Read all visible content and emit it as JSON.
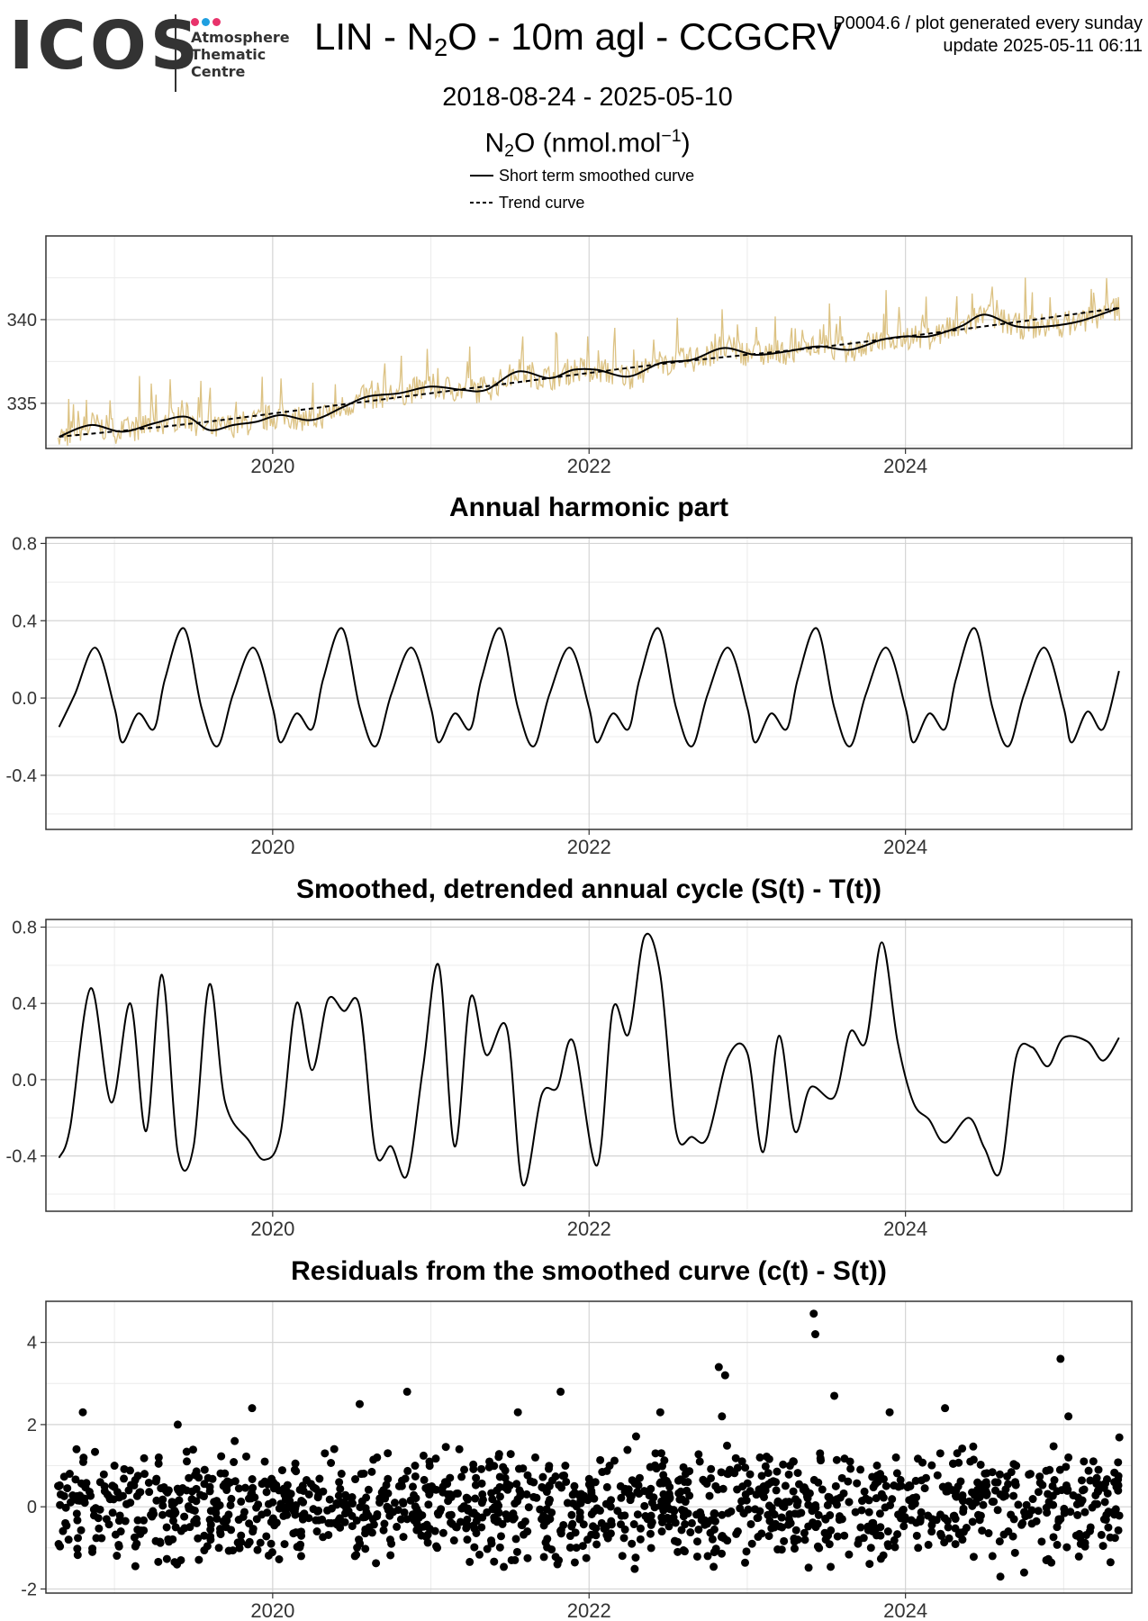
{
  "logo": {
    "wordmark": "ICOS",
    "line1": "Atmosphere",
    "line2": "Thematic",
    "line3": "Centre",
    "dot_colors": [
      "#e8336b",
      "#1f9fe0",
      "#e8336b"
    ]
  },
  "header": {
    "title_pre": "LIN - N",
    "title_sub": "2",
    "title_post": "O - 10m agl - CCGCRV",
    "meta_line1": "P0004.6 / plot generated every sunday",
    "meta_line2": "update  2025-05-11 06:11",
    "date_range": "2018-08-24 - 2025-05-10",
    "ylabel_pre": "N",
    "ylabel_sub": "2",
    "ylabel_mid": "O (nmol.mol",
    "ylabel_sup": "−1",
    "ylabel_post": ")"
  },
  "legend": {
    "solid_label": "Short term smoothed curve",
    "dashed_label": "Trend curve"
  },
  "colors": {
    "raw": "#dcc283",
    "curve": "#000000",
    "grid_major": "#d4d4d4",
    "grid_minor": "#ececec",
    "panel_border": "#333333"
  },
  "chart_data": [
    {
      "type": "line",
      "title": "",
      "x_range": [
        "2018-08-24",
        "2025-05-10"
      ],
      "x_ticks": [
        "2020",
        "2022",
        "2024"
      ],
      "ylim": [
        332.3,
        345.0
      ],
      "y_ticks": [
        335,
        340
      ],
      "grid": true,
      "series": [
        {
          "name": "Short term smoothed curve",
          "style": "solid",
          "x": [
            2018.65,
            2018.85,
            2019.05,
            2019.25,
            2019.45,
            2019.6,
            2019.75,
            2019.9,
            2020.05,
            2020.25,
            2020.45,
            2020.6,
            2020.8,
            2021.0,
            2021.2,
            2021.35,
            2021.55,
            2021.75,
            2021.9,
            2022.05,
            2022.25,
            2022.45,
            2022.65,
            2022.85,
            2023.05,
            2023.25,
            2023.45,
            2023.65,
            2023.85,
            2024.0,
            2024.15,
            2024.35,
            2024.5,
            2024.7,
            2024.9,
            2025.1,
            2025.35
          ],
          "y": [
            333.0,
            333.7,
            333.3,
            333.8,
            334.2,
            333.4,
            333.7,
            333.9,
            334.3,
            334.0,
            334.8,
            335.4,
            335.6,
            336.0,
            335.8,
            335.8,
            336.9,
            336.5,
            337.0,
            337.0,
            336.6,
            337.4,
            337.6,
            338.3,
            337.9,
            338.1,
            338.4,
            338.2,
            338.8,
            339.0,
            339.0,
            339.6,
            340.3,
            339.6,
            339.6,
            339.9,
            340.7
          ]
        },
        {
          "name": "Trend curve",
          "style": "dashed",
          "x": [
            2018.65,
            2019.5,
            2020.5,
            2021.5,
            2022.5,
            2023.5,
            2024.5,
            2025.35
          ],
          "y": [
            333.0,
            333.8,
            335.0,
            336.2,
            337.4,
            338.4,
            339.6,
            340.7
          ]
        }
      ]
    },
    {
      "type": "line",
      "title": "Annual harmonic part",
      "x_range": [
        "2018-08-24",
        "2025-05-10"
      ],
      "x_ticks": [
        "2020",
        "2022",
        "2024"
      ],
      "ylim": [
        -0.68,
        0.83
      ],
      "y_ticks": [
        -0.4,
        0.0,
        0.4,
        0.8
      ],
      "grid": true,
      "series": [
        {
          "name": "",
          "style": "solid",
          "x": [
            2018.65,
            2018.75,
            2018.88,
            2019.0,
            2019.05,
            2019.15,
            2019.25,
            2019.32,
            2019.44,
            2019.55,
            2019.65,
            2019.75,
            2019.88,
            2020.0,
            2020.05,
            2020.15,
            2020.25,
            2020.32,
            2020.44,
            2020.55,
            2020.65,
            2020.75,
            2020.88,
            2021.0,
            2021.05,
            2021.15,
            2021.25,
            2021.32,
            2021.44,
            2021.55,
            2021.65,
            2021.75,
            2021.88,
            2022.0,
            2022.05,
            2022.15,
            2022.25,
            2022.32,
            2022.44,
            2022.55,
            2022.65,
            2022.75,
            2022.88,
            2023.0,
            2023.05,
            2023.15,
            2023.25,
            2023.32,
            2023.44,
            2023.55,
            2023.65,
            2023.75,
            2023.88,
            2024.0,
            2024.05,
            2024.15,
            2024.25,
            2024.32,
            2024.44,
            2024.55,
            2024.65,
            2024.75,
            2024.88,
            2025.0,
            2025.05,
            2025.15,
            2025.25,
            2025.35
          ],
          "y": [
            -0.15,
            0.02,
            0.26,
            -0.05,
            -0.23,
            -0.08,
            -0.16,
            0.1,
            0.36,
            -0.05,
            -0.25,
            0.02,
            0.26,
            -0.05,
            -0.23,
            -0.08,
            -0.16,
            0.1,
            0.36,
            -0.05,
            -0.25,
            0.02,
            0.26,
            -0.05,
            -0.23,
            -0.08,
            -0.16,
            0.1,
            0.36,
            -0.05,
            -0.25,
            0.02,
            0.26,
            -0.05,
            -0.23,
            -0.08,
            -0.16,
            0.1,
            0.36,
            -0.05,
            -0.25,
            0.02,
            0.26,
            -0.05,
            -0.23,
            -0.08,
            -0.16,
            0.1,
            0.36,
            -0.05,
            -0.25,
            0.02,
            0.26,
            -0.05,
            -0.23,
            -0.08,
            -0.16,
            0.1,
            0.36,
            -0.05,
            -0.25,
            0.02,
            0.26,
            -0.05,
            -0.23,
            -0.07,
            -0.16,
            0.14
          ]
        }
      ]
    },
    {
      "type": "line",
      "title": "Smoothed, detrended annual cycle (S(t) - T(t))",
      "x_range": [
        "2018-08-24",
        "2025-05-10"
      ],
      "x_ticks": [
        "2020",
        "2022",
        "2024"
      ],
      "ylim": [
        -0.69,
        0.84
      ],
      "y_ticks": [
        -0.4,
        0.0,
        0.4,
        0.8
      ],
      "grid": true,
      "series": [
        {
          "name": "",
          "style": "solid",
          "x": [
            2018.65,
            2018.72,
            2018.85,
            2018.98,
            2019.1,
            2019.2,
            2019.3,
            2019.4,
            2019.5,
            2019.6,
            2019.7,
            2019.85,
            2019.95,
            2020.05,
            2020.15,
            2020.25,
            2020.35,
            2020.45,
            2020.55,
            2020.65,
            2020.75,
            2020.85,
            2020.95,
            2021.05,
            2021.15,
            2021.25,
            2021.35,
            2021.48,
            2021.58,
            2021.7,
            2021.8,
            2021.9,
            2022.05,
            2022.15,
            2022.25,
            2022.35,
            2022.45,
            2022.55,
            2022.65,
            2022.75,
            2022.88,
            2023.0,
            2023.1,
            2023.2,
            2023.3,
            2023.4,
            2023.55,
            2023.65,
            2023.75,
            2023.85,
            2023.95,
            2024.05,
            2024.15,
            2024.25,
            2024.4,
            2024.5,
            2024.6,
            2024.7,
            2024.8,
            2024.9,
            2025.0,
            2025.15,
            2025.25,
            2025.35
          ],
          "y": [
            -0.41,
            -0.25,
            0.48,
            -0.12,
            0.4,
            -0.27,
            0.55,
            -0.38,
            -0.35,
            0.5,
            -0.12,
            -0.32,
            -0.42,
            -0.28,
            0.4,
            0.05,
            0.42,
            0.36,
            0.38,
            -0.38,
            -0.35,
            -0.5,
            0.06,
            0.6,
            -0.35,
            0.43,
            0.13,
            0.27,
            -0.55,
            -0.08,
            -0.04,
            0.2,
            -0.45,
            0.37,
            0.24,
            0.75,
            0.55,
            -0.27,
            -0.3,
            -0.3,
            0.12,
            0.14,
            -0.38,
            0.23,
            -0.27,
            -0.04,
            -0.09,
            0.25,
            0.2,
            0.72,
            0.2,
            -0.12,
            -0.21,
            -0.33,
            -0.2,
            -0.36,
            -0.48,
            0.12,
            0.17,
            0.07,
            0.22,
            0.2,
            0.1,
            0.22
          ]
        }
      ]
    },
    {
      "type": "scatter",
      "title": "Residuals from the smoothed curve (c(t) - S(t))",
      "x_range": [
        "2018-08-24",
        "2025-05-10"
      ],
      "x_ticks": [
        "2020",
        "2022",
        "2024"
      ],
      "ylim": [
        -2.1,
        5.0
      ],
      "y_ticks": [
        -2,
        0,
        2,
        4
      ],
      "grid": true,
      "series": [
        {
          "name": "",
          "style": "points",
          "x": [
            2018.66,
            2018.71,
            2018.76,
            2018.81,
            2018.86,
            2018.91,
            2018.95,
            2019.0,
            2019.04,
            2019.09,
            2019.14,
            2019.19,
            2019.23,
            2019.28,
            2019.33,
            2019.38,
            2019.42,
            2019.47,
            2019.52,
            2019.57,
            2019.61,
            2019.66,
            2019.71,
            2019.76,
            2019.8,
            2019.85,
            2019.9,
            2019.95,
            2019.99,
            2020.04,
            2020.09,
            2020.14,
            2020.18,
            2020.23,
            2020.28,
            2020.33,
            2020.37,
            2020.42,
            2020.47,
            2020.52,
            2020.56,
            2020.61,
            2020.66,
            2020.71,
            2020.75,
            2020.8,
            2020.85,
            2020.9,
            2020.94,
            2020.99,
            2021.04,
            2021.09,
            2021.13,
            2021.18,
            2021.23,
            2021.28,
            2021.32,
            2021.37,
            2021.42,
            2021.47,
            2021.51,
            2021.56,
            2021.61,
            2021.66,
            2021.7,
            2021.75,
            2021.8,
            2021.85,
            2021.89,
            2021.94,
            2021.99,
            2022.04,
            2022.08,
            2022.13,
            2022.18,
            2022.23,
            2022.27,
            2022.32,
            2022.37,
            2022.42,
            2022.46,
            2022.51,
            2022.56,
            2022.61,
            2022.65,
            2022.7,
            2022.75,
            2022.8,
            2022.84,
            2022.89,
            2022.94,
            2022.99,
            2023.03,
            2023.08,
            2023.13,
            2023.18,
            2023.22,
            2023.27,
            2023.32,
            2023.37,
            2023.41,
            2023.46,
            2023.51,
            2023.56,
            2023.6,
            2023.65,
            2023.7,
            2023.75,
            2023.79,
            2023.84,
            2023.89,
            2023.94,
            2023.98,
            2024.03,
            2024.08,
            2024.13,
            2024.17,
            2024.22,
            2024.27,
            2024.32,
            2024.36,
            2024.41,
            2024.46,
            2024.51,
            2024.55,
            2024.6,
            2024.65,
            2024.7,
            2024.74,
            2024.79,
            2024.84,
            2024.89,
            2024.93,
            2024.98,
            2025.03,
            2025.08,
            2025.12,
            2025.17,
            2025.22,
            2025.27,
            2025.32,
            2018.8,
            2019.4,
            2019.87,
            2020.55,
            2020.85,
            2021.55,
            2021.82,
            2022.45,
            2022.82,
            2022.86,
            2022.84,
            2023.42,
            2023.43,
            2023.55,
            2023.9,
            2024.25,
            2024.98,
            2025.03,
            2024.6,
            2024.75
          ],
          "y": [
            0.3,
            -0.8,
            1.4,
            0.2,
            -1.1,
            0.6,
            -0.3,
            1.0,
            -0.6,
            0.4,
            -0.9,
            0.8,
            -0.2,
            1.2,
            -0.5,
            0.1,
            -1.3,
            0.7,
            -0.4,
            0.9,
            -0.1,
            -1.0,
            0.5,
            1.6,
            -0.7,
            0.2,
            -0.3,
            1.1,
            -0.9,
            0.4,
            -0.2,
            0.9,
            -1.2,
            0.3,
            -0.6,
            1.3,
            -0.4,
            0.6,
            -0.1,
            -1.2,
            0.8,
            -0.5,
            1.2,
            0.2,
            -0.9,
            0.5,
            -0.3,
            1.0,
            -0.7,
            0.3,
            -1.0,
            0.6,
            -0.2,
            1.4,
            -0.8,
            0.2,
            -0.5,
            1.1,
            -0.1,
            0.7,
            -1.3,
            0.4,
            -0.6,
            1.2,
            -0.3,
            0.5,
            -1.4,
            1.0,
            -0.2,
            0.3,
            -0.8,
            0.6,
            -0.4,
            1.0,
            -0.1,
            0.4,
            -0.9,
            0.7,
            -0.3,
            1.3,
            -0.6,
            0.2,
            -1.1,
            0.8,
            -0.4,
            1.1,
            -1.2,
            0.5,
            -0.2,
            0.9,
            -0.6,
            0.3,
            -0.9,
            1.2,
            -0.2,
            0.6,
            -0.5,
            1.0,
            -0.8,
            0.4,
            -0.1,
            1.3,
            -0.7,
            0.5,
            -0.3,
            1.1,
            -0.9,
            0.2,
            -0.4,
            0.8,
            -0.6,
            1.2,
            -0.1,
            0.5,
            -1.0,
            0.7,
            -0.3,
            1.3,
            -0.5,
            0.4,
            -0.8,
            1.1,
            -0.2,
            0.6,
            -1.2,
            0.3,
            -0.6,
            1.0,
            -0.4,
            0.8,
            -0.1,
            -1.3,
            0.5,
            -0.3,
            1.2,
            -0.7,
            0.4,
            -0.5,
            0.9,
            -0.2,
            0.6,
            2.3,
            2.0,
            2.4,
            2.5,
            2.8,
            2.3,
            2.8,
            2.3,
            3.4,
            3.2,
            2.2,
            4.7,
            4.2,
            2.7,
            2.3,
            2.4,
            3.6,
            2.2,
            -1.7,
            -1.6
          ]
        }
      ]
    }
  ]
}
